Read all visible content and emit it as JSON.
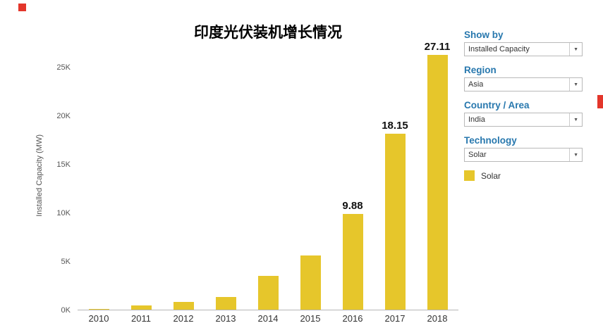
{
  "page": {
    "background": "#ffffff",
    "marker_color": "#e3362b"
  },
  "chart_data": {
    "type": "bar",
    "title": "印度光伏装机增长情况",
    "ylabel": "Installed Capacity (MW)",
    "unit": "thousand MW (K)",
    "categories": [
      "2010",
      "2011",
      "2012",
      "2013",
      "2014",
      "2015",
      "2016",
      "2017",
      "2018"
    ],
    "values": [
      0.06,
      0.45,
      0.8,
      1.3,
      3.5,
      5.6,
      9.88,
      18.15,
      27.11
    ],
    "value_labels": [
      "",
      "",
      "",
      "",
      "",
      "",
      "9.88",
      "18.15",
      "27.11"
    ],
    "ytick_labels": [
      "0K",
      "5K",
      "10K",
      "15K",
      "20K",
      "25K"
    ],
    "ytick_values": [
      0,
      5,
      10,
      15,
      20,
      25
    ],
    "ylim": [
      0,
      27.7
    ],
    "bar_color": "#e6c62b",
    "grid": false,
    "legend_position": "right"
  },
  "sidebar": {
    "accent_color": "#2878ae",
    "filters": [
      {
        "label": "Show by",
        "value": "Installed Capacity"
      },
      {
        "label": "Region",
        "value": "Asia"
      },
      {
        "label": "Country / Area",
        "value": "India"
      },
      {
        "label": "Technology",
        "value": "Solar"
      }
    ],
    "legend": [
      {
        "label": "Solar",
        "color": "#e6c62b"
      }
    ]
  }
}
